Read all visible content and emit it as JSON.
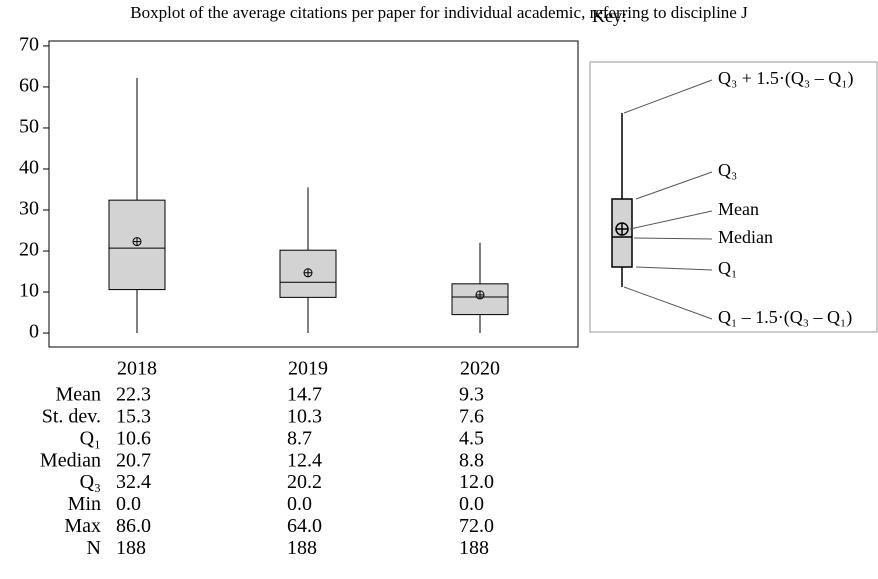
{
  "chart_data": {
    "type": "box",
    "title": "Boxplot of the average citations per paper for individual academic, referring to discipline J",
    "categories": [
      "2018",
      "2019",
      "2020"
    ],
    "boxes": [
      {
        "whisker_low": 0,
        "q1": 10.6,
        "median": 20.7,
        "q3": 32.4,
        "whisker_high": 62.2,
        "mean": 22.3
      },
      {
        "whisker_low": 0,
        "q1": 8.7,
        "median": 12.4,
        "q3": 20.2,
        "whisker_high": 35.5,
        "mean": 14.7
      },
      {
        "whisker_low": 0,
        "q1": 4.5,
        "median": 8.8,
        "q3": 12.0,
        "whisker_high": 22,
        "mean": 9.3
      }
    ],
    "color": "#d3d3d3",
    "ylim": [
      -3.4,
      71.2
    ],
    "yticks": [
      0,
      10,
      20,
      30,
      40,
      50,
      60,
      70
    ],
    "table": {
      "row_labels": [
        "Mean",
        "St. dev.",
        "Q₁",
        "Median",
        "Q₃",
        "Min",
        "Max",
        "N"
      ],
      "rows": [
        [
          "22.3",
          "14.7",
          "9.3"
        ],
        [
          "15.3",
          "10.3",
          "7.6"
        ],
        [
          "10.6",
          "8.7",
          "4.5"
        ],
        [
          "20.7",
          "12.4",
          "8.8"
        ],
        [
          "32.4",
          "20.2",
          "12.0"
        ],
        [
          "0.0",
          "0.0",
          "0.0"
        ],
        [
          "86.0",
          "64.0",
          "72.0"
        ],
        [
          "188",
          "188",
          "188"
        ]
      ]
    },
    "key": {
      "title": "Key:",
      "labels": [
        "Q₃ + 1.5·(Q₃ – Q₁)",
        "Q₃",
        "Mean",
        "Median",
        "Q₁",
        "Q₁ – 1.5·(Q₃ – Q₁)"
      ]
    }
  }
}
